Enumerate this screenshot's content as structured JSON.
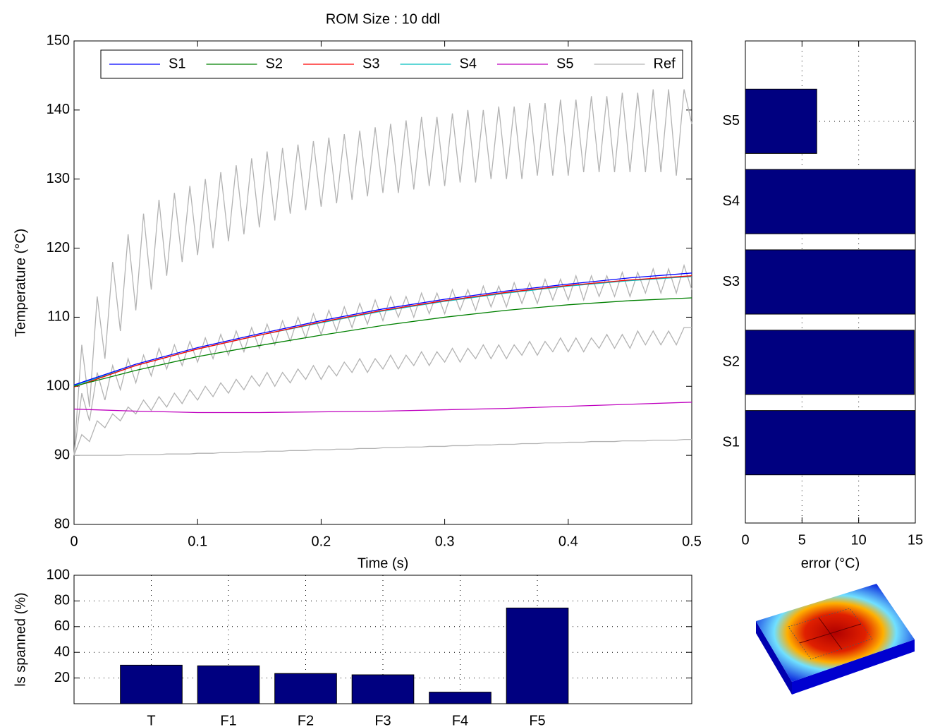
{
  "chart_data": [
    {
      "type": "line",
      "title": "ROM Size : 10 ddl",
      "xlabel": "Time (s)",
      "ylabel": "Temperature (°C)",
      "xlim": [
        0,
        0.5
      ],
      "xticks": [
        0,
        0.1,
        0.2,
        0.3,
        0.4,
        0.5
      ],
      "ylim": [
        80,
        150
      ],
      "yticks": [
        80,
        90,
        100,
        110,
        120,
        130,
        140,
        150
      ],
      "grid": false,
      "legend": "top",
      "series": [
        {
          "name": "S1",
          "color": "#0000ff",
          "x": [
            0,
            0.05,
            0.1,
            0.15,
            0.2,
            0.25,
            0.3,
            0.35,
            0.4,
            0.45,
            0.5
          ],
          "values": [
            100.2,
            103.2,
            105.6,
            107.6,
            109.5,
            111.2,
            112.6,
            113.8,
            114.8,
            115.7,
            116.4
          ]
        },
        {
          "name": "S2",
          "color": "#008000",
          "x": [
            0,
            0.05,
            0.1,
            0.15,
            0.2,
            0.25,
            0.3,
            0.35,
            0.4,
            0.45,
            0.5
          ],
          "values": [
            100,
            102.3,
            104.3,
            105.9,
            107.4,
            108.8,
            110,
            111,
            111.8,
            112.4,
            112.8
          ]
        },
        {
          "name": "S3",
          "color": "#ff0000",
          "x": [
            0,
            0.05,
            0.1,
            0.15,
            0.2,
            0.25,
            0.3,
            0.35,
            0.4,
            0.45,
            0.5
          ],
          "values": [
            99.9,
            103,
            105.4,
            107.4,
            109.3,
            111,
            112.4,
            113.6,
            114.6,
            115.4,
            116
          ]
        },
        {
          "name": "S4",
          "color": "#00bfbf",
          "x": [
            0,
            0.05,
            0.1,
            0.15,
            0.2,
            0.25,
            0.3,
            0.35,
            0.4,
            0.45,
            0.5
          ],
          "values": [
            100.1,
            103,
            105.4,
            107.4,
            109.2,
            110.9,
            112.3,
            113.5,
            114.5,
            115.3,
            115.9
          ]
        },
        {
          "name": "S5",
          "color": "#bf00bf",
          "x": [
            0,
            0.05,
            0.1,
            0.15,
            0.2,
            0.25,
            0.3,
            0.35,
            0.4,
            0.45,
            0.5
          ],
          "values": [
            96.7,
            96.4,
            96.2,
            96.2,
            96.3,
            96.4,
            96.6,
            96.8,
            97.1,
            97.4,
            97.7
          ]
        },
        {
          "name": "Ref",
          "color": "#b3b3b3",
          "x": [
            0,
            0.00625,
            0.0125,
            0.01875,
            0.025,
            0.03125,
            0.0375,
            0.04375,
            0.05,
            0.05625,
            0.0625,
            0.06875,
            0.075,
            0.08125,
            0.0875,
            0.09375,
            0.1,
            0.10625,
            0.1125,
            0.11875,
            0.125,
            0.13125,
            0.1375,
            0.14375,
            0.15,
            0.15625,
            0.1625,
            0.16875,
            0.175,
            0.18125,
            0.1875,
            0.19375,
            0.2,
            0.20625,
            0.2125,
            0.21875,
            0.225,
            0.23125,
            0.2375,
            0.24375,
            0.25,
            0.25625,
            0.2625,
            0.26875,
            0.275,
            0.28125,
            0.2875,
            0.29375,
            0.3,
            0.30625,
            0.3125,
            0.31875,
            0.325,
            0.33125,
            0.3375,
            0.34375,
            0.35,
            0.35625,
            0.3625,
            0.36875,
            0.375,
            0.38125,
            0.3875,
            0.39375,
            0.4,
            0.40625,
            0.4125,
            0.41875,
            0.425,
            0.43125,
            0.4375,
            0.44375,
            0.45,
            0.45625,
            0.4625,
            0.46875,
            0.475,
            0.48125,
            0.4875,
            0.49375,
            0.5
          ],
          "lines": [
            [
              90,
              106,
              97,
              113,
              104,
              118,
              108,
              122,
              111,
              125,
              114,
              127,
              116,
              128,
              118,
              129,
              119,
              130,
              120,
              131,
              121,
              132,
              122,
              133,
              123,
              134,
              124,
              134.5,
              125,
              135,
              125.5,
              135.5,
              126,
              136,
              126.5,
              136.5,
              127,
              137,
              127.5,
              137.5,
              128,
              138,
              128,
              138.5,
              128.5,
              139,
              129,
              139,
              129,
              139.5,
              129.5,
              140,
              129.5,
              140,
              130,
              140.5,
              130,
              140.5,
              130,
              141,
              130.5,
              141,
              130.5,
              141.5,
              130.5,
              141.5,
              131,
              142,
              131,
              142,
              131,
              142.5,
              131,
              142.5,
              131,
              143,
              131,
              143,
              130.5,
              143,
              138
            ],
            [
              90,
              99,
              95,
              102,
              98,
              103,
              99.5,
              104,
              100.5,
              104.5,
              101.5,
              105.5,
              102.5,
              106,
              103,
              106.5,
              103.5,
              107,
              104,
              107.5,
              104.5,
              108,
              105,
              108.5,
              105.5,
              109,
              106,
              109.5,
              106.5,
              110,
              107,
              110.5,
              107.5,
              111,
              108,
              111.5,
              108.5,
              112,
              109,
              112.5,
              109.5,
              113,
              110,
              113,
              110,
              113.5,
              110.5,
              113.5,
              110.5,
              114,
              111,
              114,
              111,
              114.5,
              111.5,
              114.5,
              111.5,
              115,
              112,
              115,
              112,
              115.5,
              112.5,
              115.5,
              112.5,
              116,
              112.5,
              116,
              113,
              116,
              113,
              116.5,
              113,
              116.5,
              113.5,
              117,
              113.5,
              117,
              113.5,
              117.5,
              114
            ],
            [
              90,
              93,
              92,
              95,
              94,
              96,
              95,
              97,
              96,
              98,
              96.5,
              98.5,
              97,
              99,
              97.5,
              99.5,
              98,
              100,
              98.5,
              100.5,
              99,
              101,
              99.5,
              101.5,
              100,
              102,
              100,
              102,
              100.5,
              102.5,
              101,
              103,
              101,
              103,
              101.5,
              103.5,
              102,
              104,
              102,
              104,
              102.5,
              104.5,
              102.5,
              104.5,
              103,
              105,
              103,
              105,
              103.5,
              105.5,
              103.5,
              105.5,
              104,
              106,
              104,
              106,
              104,
              106,
              104.5,
              106.5,
              104.5,
              106.5,
              105,
              107,
              105,
              107,
              105,
              107,
              105.5,
              107.5,
              105.5,
              107.5,
              105.5,
              108,
              106,
              108,
              106,
              108,
              106,
              108.5,
              108.5
            ],
            [
              90,
              90,
              90,
              90,
              90,
              90,
              90,
              90.1,
              90.1,
              90.1,
              90.1,
              90.1,
              90.2,
              90.2,
              90.2,
              90.2,
              90.3,
              90.3,
              90.3,
              90.4,
              90.4,
              90.4,
              90.5,
              90.5,
              90.5,
              90.6,
              90.6,
              90.6,
              90.7,
              90.7,
              90.7,
              90.8,
              90.8,
              90.8,
              90.9,
              90.9,
              90.9,
              91,
              91,
              91,
              91.1,
              91.1,
              91.1,
              91.2,
              91.2,
              91.2,
              91.3,
              91.3,
              91.3,
              91.4,
              91.4,
              91.4,
              91.5,
              91.5,
              91.5,
              91.6,
              91.6,
              91.6,
              91.7,
              91.7,
              91.7,
              91.8,
              91.8,
              91.8,
              91.9,
              91.9,
              91.9,
              92,
              92,
              92,
              92,
              92.1,
              92.1,
              92.1,
              92.1,
              92.2,
              92.2,
              92.2,
              92.2,
              92.3,
              92.3
            ]
          ]
        }
      ]
    },
    {
      "type": "barh",
      "xlabel": "error (°C)",
      "categories": [
        "S1",
        "S2",
        "S3",
        "S4",
        "S5"
      ],
      "values": [
        15,
        14.9,
        15,
        15,
        6.3
      ],
      "color": "#000080",
      "xlim": [
        0,
        15
      ],
      "xticks": [
        0,
        5,
        10,
        15
      ],
      "grid": true
    },
    {
      "type": "bar",
      "ylabel": "ls spanned (%)",
      "categories": [
        "T",
        "F1",
        "F2",
        "F3",
        "F4",
        "F5"
      ],
      "values": [
        30,
        29.5,
        23.5,
        22.5,
        9,
        74.5
      ],
      "color": "#000080",
      "ylim": [
        0,
        100
      ],
      "yticks": [
        20,
        40,
        60,
        80,
        100
      ],
      "grid": true
    }
  ]
}
